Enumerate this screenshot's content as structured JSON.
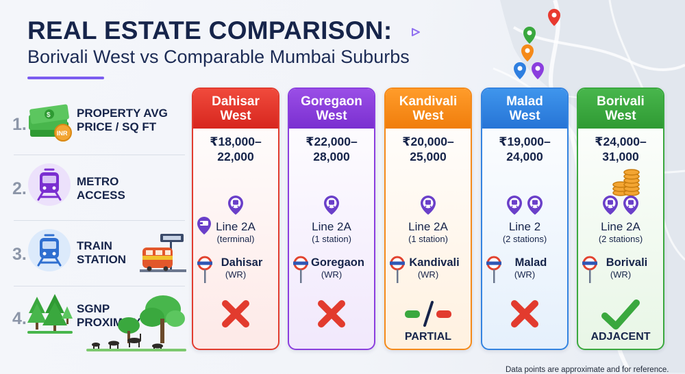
{
  "title": {
    "line1": "REAL ESTATE COMPARISON:",
    "line2": "Borivali West vs Comparable Mumbai Suburbs"
  },
  "categories": [
    {
      "num": "1.",
      "label_line1": "PROPERTY AVG",
      "label_line2": "PRICE / SQ FT",
      "icon": "money-stack-icon"
    },
    {
      "num": "2.",
      "label_line1": "METRO",
      "label_line2": "ACCESS",
      "icon": "metro-train-icon"
    },
    {
      "num": "3.",
      "label_line1": "TRAIN",
      "label_line2": "STATION",
      "icon": "train-icon"
    },
    {
      "num": "4.",
      "label_line1": "SGNP",
      "label_line2": "PROXIMITY",
      "icon": "forest-icon"
    }
  ],
  "suburbs": [
    {
      "name_line1": "Dahisar",
      "name_line2": "West",
      "price_line1": "₹18,000–",
      "price_line2": "22,000",
      "metro_line": "Line 2A",
      "metro_detail": "(terminal)",
      "station": "Dahisar",
      "station_line": "(WR)",
      "sgnp": "no",
      "sgnp_label": "",
      "color_top": "#f04a3c",
      "color_bottom": "#d7261e",
      "tint": "#fde9e7",
      "border": "#e23b2e"
    },
    {
      "name_line1": "Goregaon",
      "name_line2": "West",
      "price_line1": "₹22,000–",
      "price_line2": "28,000",
      "metro_line": "Line 2A",
      "metro_detail": "(1 station)",
      "station": "Goregaon",
      "station_line": "(WR)",
      "sgnp": "no",
      "sgnp_label": "",
      "color_top": "#9a4ee6",
      "color_bottom": "#7a2fd0",
      "tint": "#f1e8fc",
      "border": "#8a3ede"
    },
    {
      "name_line1": "Kandivali",
      "name_line2": "West",
      "price_line1": "₹20,000–",
      "price_line2": "25,000",
      "metro_line": "Line 2A",
      "metro_detail": "(1 station)",
      "station": "Kandivali",
      "station_line": "(WR)",
      "sgnp": "partial",
      "sgnp_label": "PARTIAL",
      "color_top": "#ff9c2a",
      "color_bottom": "#f07d0c",
      "tint": "#fff1e0",
      "border": "#f58a1a"
    },
    {
      "name_line1": "Malad",
      "name_line2": "West",
      "price_line1": "₹19,000–",
      "price_line2": "24,000",
      "metro_line": "Line 2",
      "metro_detail": "(2 stations)",
      "station": "Malad",
      "station_line": "(WR)",
      "sgnp": "no",
      "sgnp_label": "",
      "color_top": "#3f95ec",
      "color_bottom": "#2674d6",
      "tint": "#e5f0fc",
      "border": "#3383e0"
    },
    {
      "name_line1": "Borivali",
      "name_line2": "West",
      "price_line1": "₹24,000–",
      "price_line2": "31,000",
      "metro_line": "Line 2A",
      "metro_detail": "(2 stations)",
      "station": "Borivali",
      "station_line": "(WR)",
      "sgnp": "yes",
      "sgnp_label": "ADJACENT",
      "color_top": "#48b64c",
      "color_bottom": "#2f9a33",
      "tint": "#e8f6e6",
      "border": "#3aa83e"
    }
  ],
  "footnote": "Data points are approximate and for reference."
}
